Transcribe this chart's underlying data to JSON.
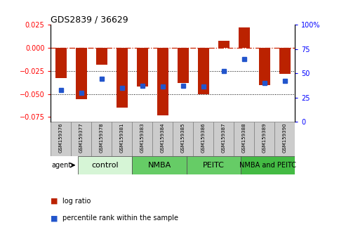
{
  "title": "GDS2839 / 36629",
  "samples": [
    "GSM159376",
    "GSM159377",
    "GSM159378",
    "GSM159381",
    "GSM159383",
    "GSM159384",
    "GSM159385",
    "GSM159386",
    "GSM159387",
    "GSM159388",
    "GSM159389",
    "GSM159390"
  ],
  "log_ratio": [
    -0.033,
    -0.056,
    -0.018,
    -0.065,
    -0.042,
    -0.073,
    -0.038,
    -0.05,
    0.008,
    0.022,
    -0.04,
    -0.028
  ],
  "pct_rank": [
    33,
    30,
    44,
    35,
    37,
    36,
    37,
    36,
    52,
    65,
    40,
    42
  ],
  "bar_color": "#bb2200",
  "dot_color": "#2255cc",
  "zero_line_color": "#cc2200",
  "dotted_line_color": "#000000",
  "ylim_left": [
    -0.08,
    0.025
  ],
  "ylim_right": [
    0,
    100
  ],
  "yticks_left": [
    0.025,
    0.0,
    -0.025,
    -0.05,
    -0.075
  ],
  "yticks_right": [
    100,
    75,
    50,
    25,
    0
  ],
  "groups": [
    {
      "label": "control",
      "start": 0,
      "end": 3,
      "color": "#d6f5d6"
    },
    {
      "label": "NMBA",
      "start": 3,
      "end": 6,
      "color": "#66cc66"
    },
    {
      "label": "PEITC",
      "start": 6,
      "end": 9,
      "color": "#66cc66"
    },
    {
      "label": "NMBA and PEITC",
      "start": 9,
      "end": 12,
      "color": "#44bb44"
    }
  ],
  "agent_label": "agent",
  "legend_items": [
    {
      "color": "#bb2200",
      "label": "log ratio"
    },
    {
      "color": "#2255cc",
      "label": "percentile rank within the sample"
    }
  ],
  "background_color": "#ffffff",
  "plot_bg_color": "#ffffff",
  "tick_label_bg": "#cccccc",
  "bar_width": 0.55
}
